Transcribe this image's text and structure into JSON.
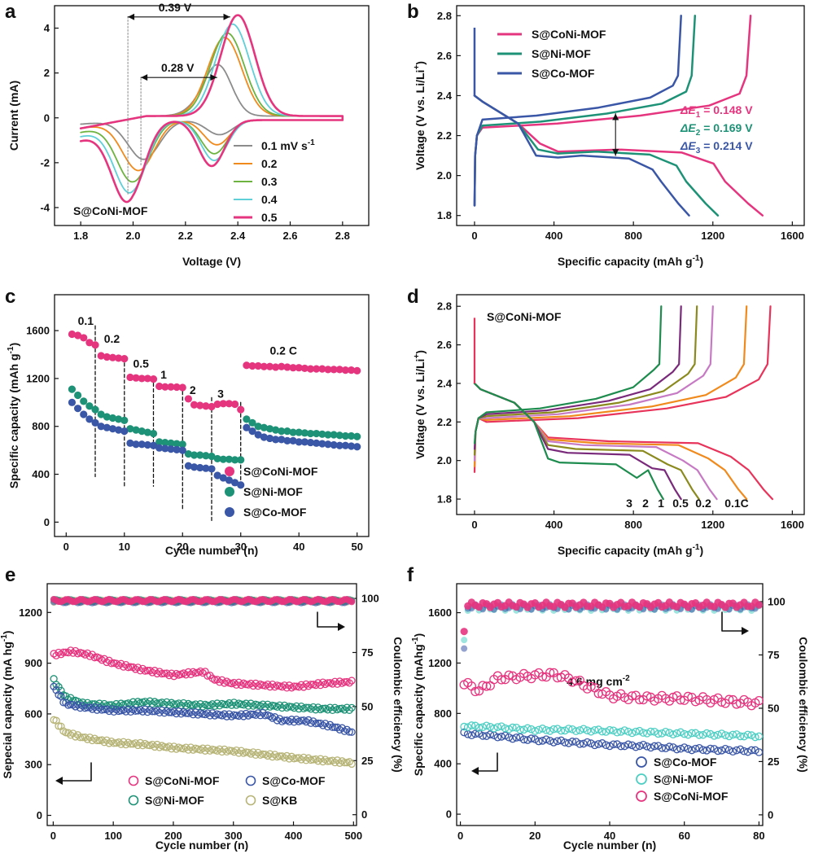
{
  "chart_data": [
    {
      "panel": "a",
      "type": "line",
      "xlabel": "Voltage (V)",
      "ylabel": "Current (mA)",
      "xlim": [
        1.7,
        2.9
      ],
      "ylim": [
        -4.8,
        5.0
      ],
      "xticks": [
        "1.8",
        "2.0",
        "2.2",
        "2.4",
        "2.6",
        "2.8"
      ],
      "yticks": [
        "-4",
        "-2",
        "0",
        "2",
        "4"
      ],
      "sample": "S@CoNi-MOF",
      "annotations": [
        "0.39 V",
        "0.28 V"
      ],
      "legend_title": "mV s",
      "series": [
        {
          "name": "0.1 mV s-1",
          "label": "0.1 mV s",
          "color": "#8c8c8c",
          "ox_peak_v": 2.33,
          "ox_peak_i": 1.85,
          "red1_v": 2.33,
          "red1_i": -0.65,
          "red2_v": 2.04,
          "red2_i": -1.75
        },
        {
          "name": "0.2",
          "label": "0.2",
          "color": "#f08a1c",
          "ox_peak_v": 2.35,
          "ox_peak_i": 3.5,
          "red1_v": 2.32,
          "red1_i": -1.1,
          "red2_v": 2.02,
          "red2_i": -2.25
        },
        {
          "name": "0.3",
          "label": "0.3",
          "color": "#6db33f",
          "ox_peak_v": 2.36,
          "ox_peak_i": 3.7,
          "red1_v": 2.31,
          "red1_i": -1.5,
          "red2_v": 2.0,
          "red2_i": -2.75
        },
        {
          "name": "0.4",
          "label": "0.4",
          "color": "#5fcfd8",
          "ox_peak_v": 2.38,
          "ox_peak_i": 4.1,
          "red1_v": 2.31,
          "red1_i": -1.8,
          "red2_v": 1.99,
          "red2_i": -3.2
        },
        {
          "name": "0.5",
          "label": "0.5",
          "color": "#e6357f",
          "ox_peak_v": 2.4,
          "ox_peak_i": 4.5,
          "red1_v": 2.3,
          "red1_i": -2.05,
          "red2_v": 1.98,
          "red2_i": -3.55
        }
      ]
    },
    {
      "panel": "b",
      "type": "line",
      "xlabel": "Specific capacity (mAh g-1)",
      "ylabel": "Voltage (V vs. Li/Li+)",
      "xlabel_text": "Specific capacity (mAh g",
      "ylabel_text": "Voltage (V vs. Li/Li",
      "xlim": [
        -90,
        1660
      ],
      "ylim": [
        1.75,
        2.85
      ],
      "xticks": [
        "0",
        "400",
        "800",
        "1200",
        "1600"
      ],
      "yticks": [
        "1.8",
        "2.0",
        "2.2",
        "2.4",
        "2.6",
        "2.8"
      ],
      "annotations": [
        {
          "sym": "ΔE",
          "sub": "1",
          "val": " = 0.148 V",
          "color": "#e6357f"
        },
        {
          "sym": "ΔE",
          "sub": "2",
          "val": " = 0.169 V",
          "color": "#1e9276"
        },
        {
          "sym": "ΔE",
          "sub": "3",
          "val": " = 0.214 V",
          "color": "#3a56a6"
        }
      ],
      "series": [
        {
          "name": "S@CoNi-MOF",
          "color": "#e6357f",
          "discharge_capacity": 1450,
          "charge_capacity": 1390,
          "discharge_plateau": 2.12,
          "charge_plateau": 2.26
        },
        {
          "name": "S@Ni-MOF",
          "color": "#1e9276",
          "discharge_capacity": 1225,
          "charge_capacity": 1110,
          "discharge_plateau": 2.11,
          "charge_plateau": 2.27
        },
        {
          "name": "S@Co-MOF",
          "color": "#3a56a6",
          "discharge_capacity": 1080,
          "charge_capacity": 1040,
          "discharge_plateau": 2.09,
          "charge_plateau": 2.3
        }
      ]
    },
    {
      "panel": "c",
      "type": "scatter",
      "xlabel": "Cycle number (n)",
      "ylabel": "Specific capacity (mAh g-1)",
      "ylabel_text": "Specific capacity (mAh g",
      "xlim": [
        -2,
        52
      ],
      "ylim": [
        -120,
        1900
      ],
      "xticks": [
        "0",
        "10",
        "20",
        "30",
        "40",
        "50"
      ],
      "yticks": [
        "0",
        "400",
        "800",
        "1200",
        "1600"
      ],
      "rate_labels": [
        "0.1",
        "0.2",
        "0.5",
        "1",
        "2",
        "3",
        "0.2 C"
      ],
      "series": [
        {
          "name": "S@CoNi-MOF",
          "color": "#e6357f",
          "values": [
            1570,
            1560,
            1540,
            1500,
            1480,
            1390,
            1380,
            1375,
            1370,
            1365,
            1210,
            1205,
            1200,
            1200,
            1195,
            1135,
            1130,
            1130,
            1128,
            1125,
            1030,
            980,
            975,
            970,
            965,
            985,
            990,
            990,
            985,
            940,
            1310,
            1305,
            1305,
            1300,
            1300,
            1295,
            1300,
            1295,
            1290,
            1290,
            1285,
            1280,
            1280,
            1280,
            1275,
            1275,
            1275,
            1270,
            1270,
            1265
          ]
        },
        {
          "name": "S@Ni-MOF",
          "color": "#1e9276",
          "values": [
            1110,
            1060,
            1010,
            970,
            940,
            900,
            880,
            870,
            860,
            850,
            780,
            770,
            760,
            750,
            740,
            670,
            665,
            660,
            655,
            650,
            570,
            560,
            560,
            555,
            550,
            530,
            525,
            525,
            520,
            520,
            860,
            830,
            800,
            790,
            780,
            770,
            760,
            760,
            750,
            750,
            745,
            740,
            740,
            735,
            730,
            730,
            725,
            720,
            720,
            715
          ]
        },
        {
          "name": "S@Co-MOF",
          "color": "#3a56a6",
          "values": [
            1000,
            950,
            900,
            860,
            830,
            800,
            790,
            780,
            770,
            760,
            660,
            650,
            650,
            645,
            640,
            620,
            615,
            610,
            605,
            600,
            470,
            460,
            455,
            450,
            445,
            390,
            370,
            350,
            330,
            310,
            790,
            760,
            730,
            710,
            700,
            690,
            690,
            680,
            680,
            670,
            670,
            665,
            660,
            655,
            650,
            645,
            640,
            640,
            635,
            630
          ]
        }
      ]
    },
    {
      "panel": "d",
      "type": "line",
      "xlabel": "Specific capacity (mAh g-1)",
      "ylabel": "Voltage (V vs. Li/Li+)",
      "xlabel_text": "Specific capacity (mAh g",
      "ylabel_text": "Voltage (V vs. Li/Li",
      "xlim": [
        -90,
        1660
      ],
      "ylim": [
        1.72,
        2.86
      ],
      "xticks": [
        "0",
        "400",
        "800",
        "1200",
        "1600"
      ],
      "yticks": [
        "1.8",
        "2.0",
        "2.2",
        "2.4",
        "2.6",
        "2.8"
      ],
      "sample": "S@CoNi-MOF",
      "series": [
        {
          "name": "0.1C",
          "color": "#e8335a",
          "discharge_capacity": 1500,
          "charge_capacity": 1490,
          "plateau": 2.1
        },
        {
          "name": "0.2",
          "color": "#f08a1c",
          "discharge_capacity": 1370,
          "charge_capacity": 1370,
          "plateau": 2.09
        },
        {
          "name": "0.5",
          "color": "#c77ac4",
          "discharge_capacity": 1220,
          "charge_capacity": 1200,
          "plateau": 2.08
        },
        {
          "name": "1",
          "color": "#8a8a1e",
          "discharge_capacity": 1130,
          "charge_capacity": 1120,
          "plateau": 2.06
        },
        {
          "name": "2",
          "color": "#7a2a7a",
          "discharge_capacity": 1040,
          "charge_capacity": 1040,
          "plateau": 2.04
        },
        {
          "name": "3",
          "color": "#1e8c4e",
          "discharge_capacity": 950,
          "charge_capacity": 940,
          "plateau": 1.99
        }
      ]
    },
    {
      "panel": "e",
      "type": "scatter",
      "xlabel": "Cycle number (n)",
      "ylabel": "Sepecial capacity (mA hg-1)",
      "y2label": "Coulombic efficiency (%)",
      "ylabel_text": "Sepecial capacity (mA hg",
      "xlim": [
        -10,
        505
      ],
      "ylim": [
        -60,
        1370
      ],
      "y2lim": [
        -5,
        106.8
      ],
      "xticks": [
        "0",
        "100",
        "200",
        "300",
        "400",
        "500"
      ],
      "yticks": [
        "0",
        "300",
        "600",
        "900",
        "1200"
      ],
      "y2ticks": [
        "0",
        "25",
        "50",
        "75",
        "100"
      ],
      "series": [
        {
          "name": "S@CoNi-MOF",
          "color": "#e6357f",
          "capacity": [
            [
              1,
              950
            ],
            [
              30,
              970
            ],
            [
              60,
              950
            ],
            [
              100,
              900
            ],
            [
              150,
              860
            ],
            [
              200,
              830
            ],
            [
              250,
              850
            ],
            [
              270,
              800
            ],
            [
              300,
              780
            ],
            [
              350,
              770
            ],
            [
              400,
              760
            ],
            [
              450,
              780
            ],
            [
              500,
              790
            ]
          ],
          "ce": 99
        },
        {
          "name": "S@Ni-MOF",
          "color": "#1e9276",
          "capacity": [
            [
              1,
              800
            ],
            [
              20,
              700
            ],
            [
              50,
              660
            ],
            [
              100,
              650
            ],
            [
              150,
              670
            ],
            [
              200,
              660
            ],
            [
              250,
              650
            ],
            [
              300,
              660
            ],
            [
              350,
              650
            ],
            [
              400,
              640
            ],
            [
              450,
              630
            ],
            [
              500,
              630
            ]
          ],
          "ce": 99
        },
        {
          "name": "S@Co-MOF",
          "color": "#3a56a6",
          "capacity": [
            [
              1,
              760
            ],
            [
              20,
              660
            ],
            [
              50,
              640
            ],
            [
              100,
              620
            ],
            [
              150,
              620
            ],
            [
              200,
              610
            ],
            [
              250,
              600
            ],
            [
              300,
              590
            ],
            [
              350,
              600
            ],
            [
              380,
              560
            ],
            [
              420,
              560
            ],
            [
              460,
              530
            ],
            [
              500,
              490
            ]
          ],
          "ce": 98.5
        },
        {
          "name": "S@KB",
          "color": "#b7b477",
          "capacity": [
            [
              1,
              570
            ],
            [
              20,
              490
            ],
            [
              50,
              460
            ],
            [
              100,
              430
            ],
            [
              150,
              420
            ],
            [
              200,
              400
            ],
            [
              250,
              390
            ],
            [
              300,
              380
            ],
            [
              350,
              360
            ],
            [
              400,
              340
            ],
            [
              450,
              325
            ],
            [
              500,
              310
            ]
          ],
          "ce": 98.7
        }
      ]
    },
    {
      "panel": "f",
      "type": "scatter",
      "xlabel": "Cycle number (n)",
      "ylabel": "Specific capacity (mAhg-1)",
      "y2label": "Coulombic efficiency (%)",
      "ylabel_text": "Specific capacity (mAhg",
      "xlim": [
        -1,
        81
      ],
      "ylim": [
        -90,
        1830
      ],
      "y2lim": [
        -5,
        108.4
      ],
      "xticks": [
        "0",
        "20",
        "40",
        "60",
        "80"
      ],
      "yticks": [
        "0",
        "400",
        "800",
        "1200",
        "1600"
      ],
      "y2ticks": [
        "0",
        "25",
        "50",
        "75",
        "100"
      ],
      "loading": "4.6 mg cm",
      "series": [
        {
          "name": "S@Co-MOF",
          "color": "#3a56a6",
          "capacity": [
            [
              1,
              640
            ],
            [
              10,
              620
            ],
            [
              20,
              590
            ],
            [
              30,
              570
            ],
            [
              40,
              550
            ],
            [
              50,
              540
            ],
            [
              60,
              520
            ],
            [
              70,
              510
            ],
            [
              80,
              500
            ]
          ],
          "ce": 97.5
        },
        {
          "name": "S@Ni-MOF",
          "color": "#4ecfc4",
          "capacity": [
            [
              1,
              700
            ],
            [
              10,
              690
            ],
            [
              20,
              670
            ],
            [
              30,
              670
            ],
            [
              40,
              660
            ],
            [
              50,
              650
            ],
            [
              60,
              640
            ],
            [
              70,
              630
            ],
            [
              80,
              620
            ]
          ],
          "ce": 97
        },
        {
          "name": "S@CoNi-MOF",
          "color": "#e6357f",
          "capacity": [
            [
              1,
              1040
            ],
            [
              5,
              980
            ],
            [
              10,
              1080
            ],
            [
              20,
              1100
            ],
            [
              25,
              1110
            ],
            [
              30,
              1070
            ],
            [
              35,
              1000
            ],
            [
              40,
              940
            ],
            [
              50,
              920
            ],
            [
              60,
              920
            ],
            [
              70,
              900
            ],
            [
              80,
              880
            ]
          ],
          "ce": 98.5
        }
      ]
    }
  ]
}
